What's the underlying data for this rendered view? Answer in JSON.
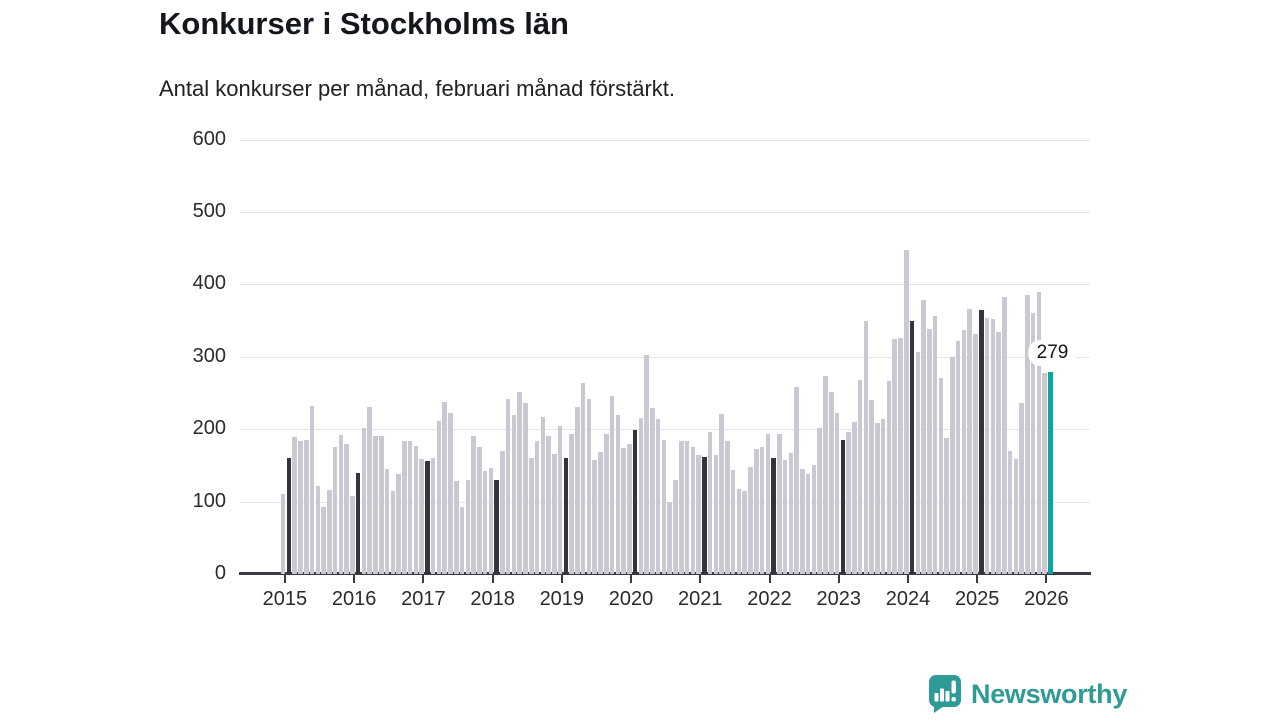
{
  "header": {
    "title": "Konkurser i Stockholms län",
    "subtitle": "Antal konkurser per månad, februari månad förstärkt."
  },
  "chart_data": {
    "type": "bar",
    "title": "Konkurser i Stockholms län",
    "subtitle": "Antal konkurser per månad, februari månad förstärkt.",
    "xlabel": "",
    "ylabel": "",
    "start_month": "2015-01",
    "end_month": "2026-02",
    "february_emphasized": true,
    "years": [
      {
        "year": 2015,
        "values": [
          110,
          160,
          189,
          183,
          185,
          232,
          122,
          93,
          116,
          175,
          192,
          180
        ]
      },
      {
        "year": 2016,
        "values": [
          108,
          140,
          202,
          231,
          191,
          190,
          145,
          114,
          138,
          183,
          184,
          177
        ]
      },
      {
        "year": 2017,
        "values": [
          159,
          156,
          160,
          211,
          237,
          222,
          128,
          92,
          130,
          190,
          175,
          142
        ]
      },
      {
        "year": 2018,
        "values": [
          147,
          130,
          170,
          241,
          219,
          251,
          236,
          160,
          183,
          217,
          190,
          166
        ]
      },
      {
        "year": 2019,
        "values": [
          204,
          160,
          193,
          231,
          264,
          241,
          157,
          168,
          194,
          246,
          219,
          174
        ]
      },
      {
        "year": 2020,
        "values": [
          180,
          199,
          216,
          303,
          229,
          214,
          185,
          99,
          130,
          183,
          184,
          176
        ]
      },
      {
        "year": 2021,
        "values": [
          165,
          162,
          196,
          164,
          221,
          183,
          144,
          118,
          114,
          148,
          172,
          176
        ]
      },
      {
        "year": 2022,
        "values": [
          193,
          160,
          193,
          158,
          167,
          258,
          145,
          138,
          150,
          201,
          273,
          251
        ]
      },
      {
        "year": 2023,
        "values": [
          222,
          185,
          196,
          210,
          268,
          350,
          240,
          208,
          214,
          267,
          324,
          326
        ]
      },
      {
        "year": 2024,
        "values": [
          448,
          349,
          306,
          378,
          338,
          356,
          270,
          188,
          300,
          322,
          337,
          366
        ]
      },
      {
        "year": 2025,
        "values": [
          331,
          365,
          353,
          352,
          334,
          383,
          170,
          159,
          236,
          385,
          360,
          389
        ]
      },
      {
        "year": 2026,
        "values": [
          277,
          279
        ]
      }
    ],
    "highlight": {
      "month": "2026-02",
      "value": 279,
      "label": "279"
    },
    "y_axis": {
      "min": 0,
      "max": 600,
      "tick_step": 100,
      "ticks": [
        0,
        100,
        200,
        300,
        400,
        500,
        600
      ]
    },
    "x_tick_labels": [
      "2015",
      "2016",
      "2017",
      "2018",
      "2019",
      "2020",
      "2021",
      "2022",
      "2023",
      "2024",
      "2025",
      "2026"
    ],
    "legend": "none",
    "grid": "horizontal",
    "colors": {
      "bar": "#c9c8d3",
      "february_bar": "#34333e",
      "highlight_bar": "#0aa69d",
      "gridline": "#e5e5e8",
      "axis": "#3c3b45"
    }
  },
  "annotation": {
    "text": "279"
  },
  "footer": {
    "brand": "Newsworthy",
    "brand_color": "#2e9b96"
  }
}
